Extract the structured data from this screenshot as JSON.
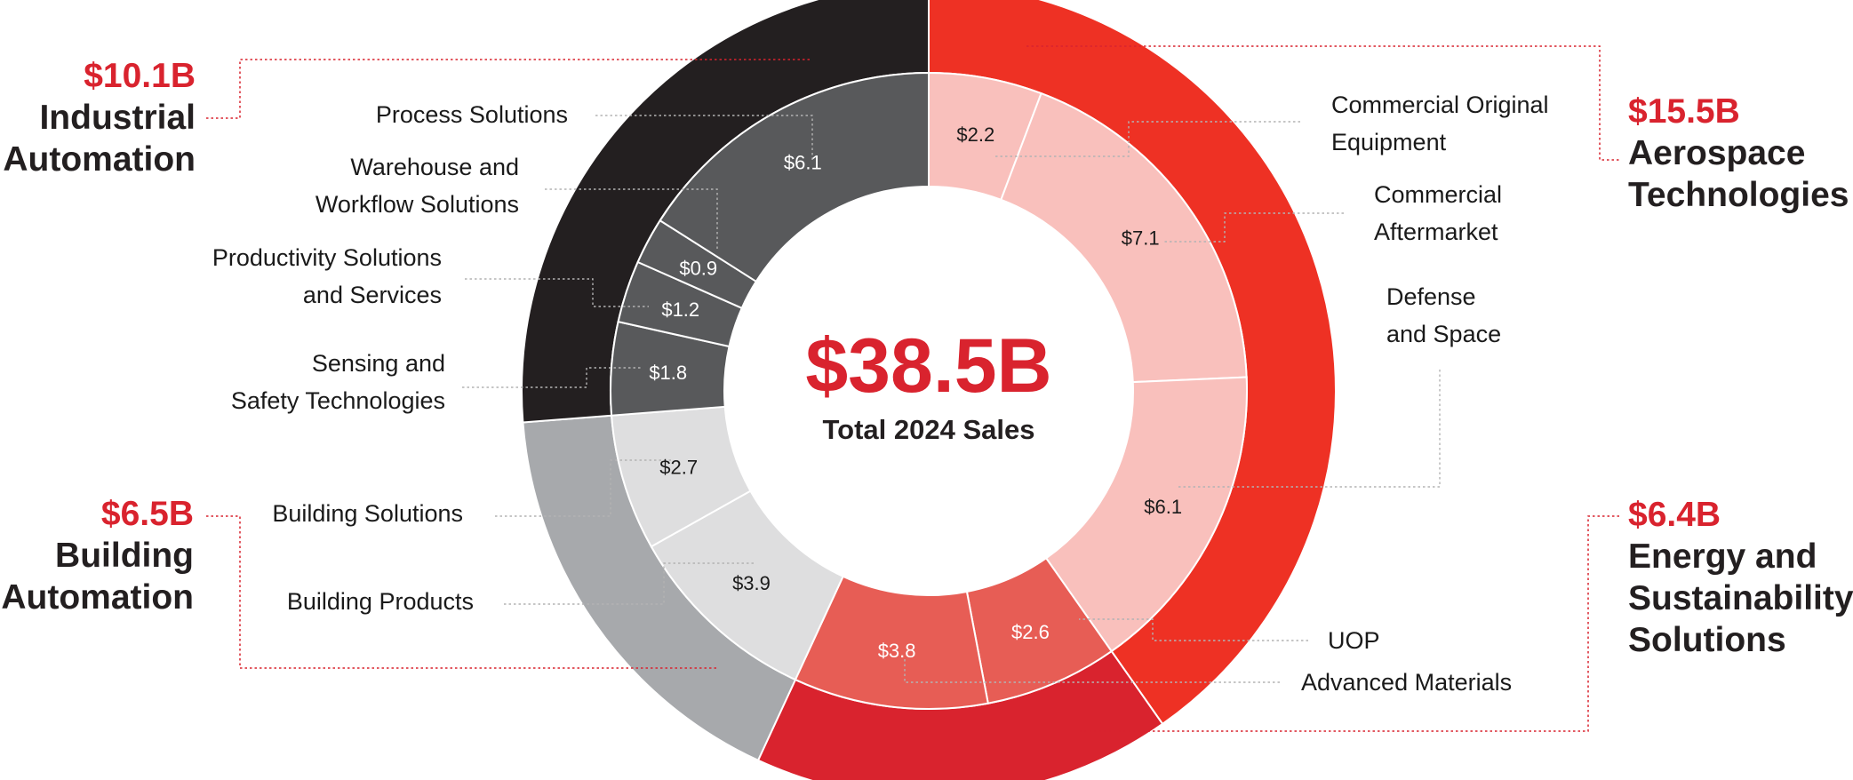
{
  "chart_data": {
    "type": "donut",
    "title": "Total 2024 Sales",
    "total_label": "$38.5B",
    "total_caption": "Total 2024 Sales",
    "units": "$B",
    "segments": [
      {
        "id": "aerospace",
        "name_lines": [
          "Aerospace",
          "Technologies"
        ],
        "total": 15.5,
        "total_label": "$15.5B",
        "outer_color": "#ee3124",
        "inner_color": "#f9c0bc",
        "inner_text_color": "#1a1a1a",
        "subsegments": [
          {
            "id": "commercial-oe",
            "name_lines": [
              "Commercial Original",
              "Equipment"
            ],
            "value": 2.2,
            "label": "$2.2"
          },
          {
            "id": "commercial-aftermarket",
            "name_lines": [
              "Commercial",
              "Aftermarket"
            ],
            "value": 7.1,
            "label": "$7.1"
          },
          {
            "id": "defense-space",
            "name_lines": [
              "Defense",
              "and Space"
            ],
            "value": 6.1,
            "label": "$6.1"
          }
        ]
      },
      {
        "id": "energy",
        "name_lines": [
          "Energy and",
          "Sustainability",
          "Solutions"
        ],
        "total": 6.4,
        "total_label": "$6.4B",
        "outer_color": "#d9232e",
        "inner_color": "#e75d55",
        "inner_text_color": "#ffffff",
        "subsegments": [
          {
            "id": "uop",
            "name_lines": [
              "UOP"
            ],
            "value": 2.6,
            "label": "$2.6"
          },
          {
            "id": "advanced-materials",
            "name_lines": [
              "Advanced Materials"
            ],
            "value": 3.8,
            "label": "$3.8"
          }
        ]
      },
      {
        "id": "building",
        "name_lines": [
          "Building",
          "Automation"
        ],
        "total": 6.5,
        "total_label": "$6.5B",
        "outer_color": "#a7a9ac",
        "inner_color": "#dededf",
        "inner_text_color": "#1a1a1a",
        "subsegments": [
          {
            "id": "building-products",
            "name_lines": [
              "Building Products"
            ],
            "value": 3.9,
            "label": "$3.9"
          },
          {
            "id": "building-solutions",
            "name_lines": [
              "Building Solutions"
            ],
            "value": 2.7,
            "label": "$2.7"
          }
        ]
      },
      {
        "id": "industrial",
        "name_lines": [
          "Industrial",
          "Automation"
        ],
        "total": 10.1,
        "total_label": "$10.1B",
        "outer_color": "#231f20",
        "inner_color": "#58595b",
        "inner_text_color": "#ffffff",
        "subsegments": [
          {
            "id": "sensing-safety",
            "name_lines": [
              "Sensing and",
              "Safety Technologies"
            ],
            "value": 1.8,
            "label": "$1.8"
          },
          {
            "id": "productivity",
            "name_lines": [
              "Productivity Solutions",
              "and Services"
            ],
            "value": 1.2,
            "label": "$1.2"
          },
          {
            "id": "warehouse",
            "name_lines": [
              "Warehouse and",
              "Workflow Solutions"
            ],
            "value": 0.9,
            "label": "$0.9"
          },
          {
            "id": "process",
            "name_lines": [
              "Process Solutions"
            ],
            "value": 6.1,
            "label": "$6.1"
          }
        ]
      }
    ],
    "accent_color": "#d9232e"
  }
}
